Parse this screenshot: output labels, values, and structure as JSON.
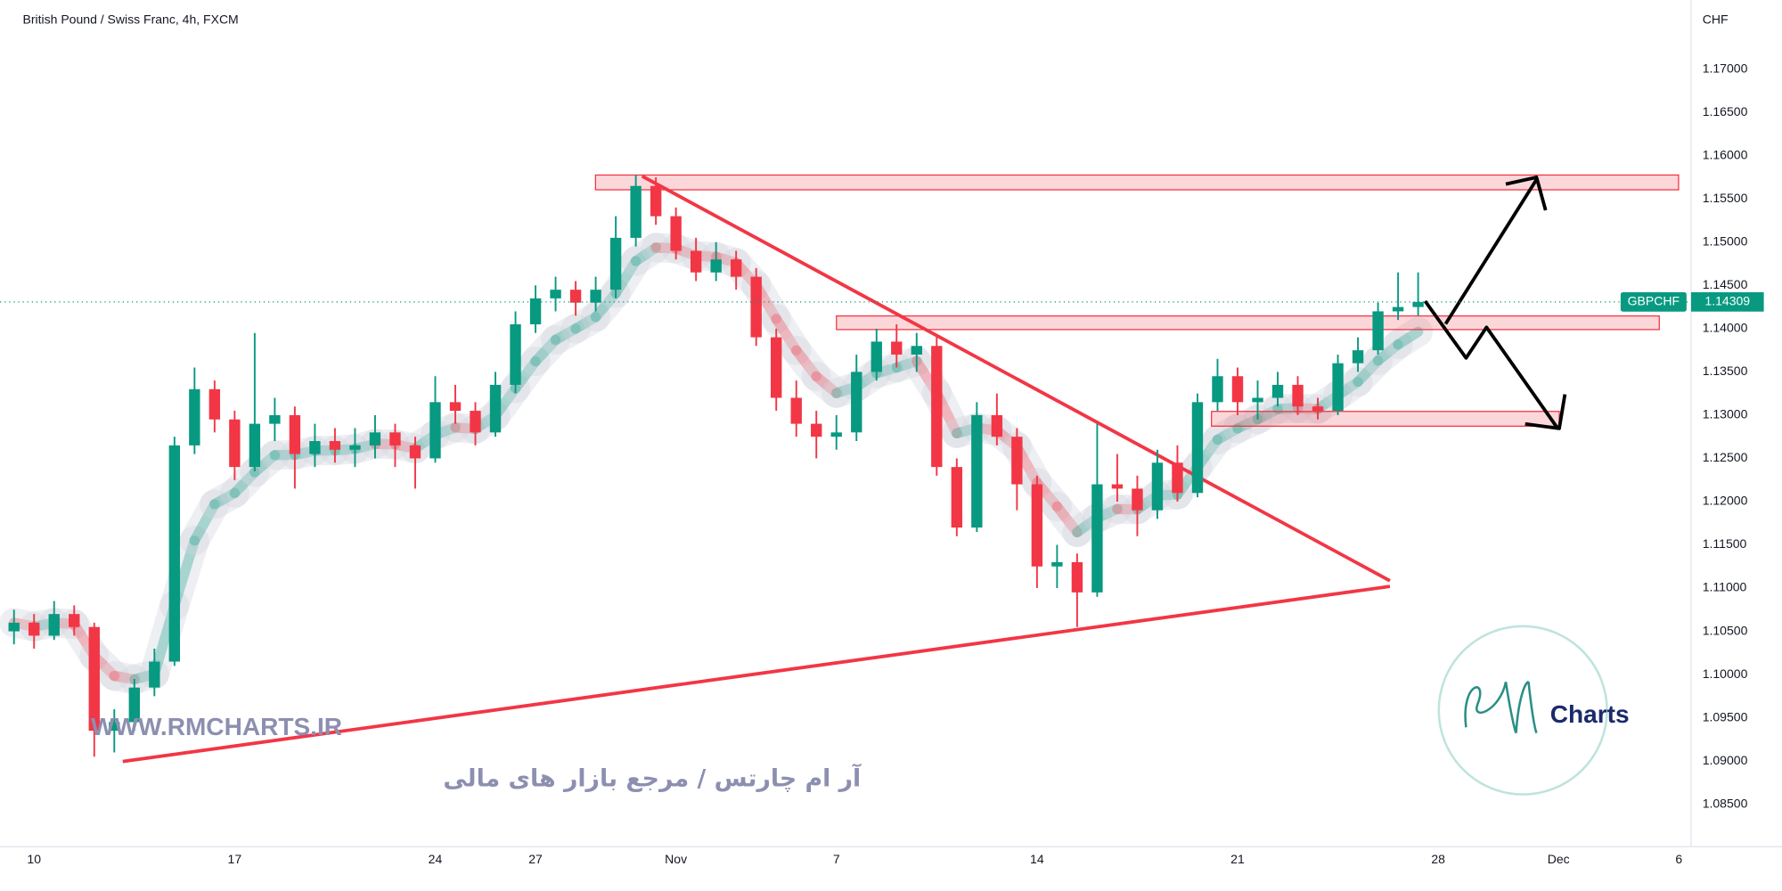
{
  "chart_data": {
    "type": "candlestick",
    "title": "British Pound / Swiss Franc, 4h, FXCM",
    "currency": "CHF",
    "last_price": {
      "symbol": "GBPCHF",
      "value": 1.14309
    },
    "up_color": "#089981",
    "down_color": "#f23645",
    "grid": false,
    "categories": [
      null,
      "10",
      null,
      null,
      null,
      null,
      null,
      null,
      null,
      null,
      null,
      "17",
      null,
      null,
      null,
      null,
      null,
      null,
      null,
      null,
      null,
      "24",
      null,
      null,
      null,
      null,
      "27",
      null,
      null,
      null,
      null,
      null,
      null,
      "Nov",
      null,
      null,
      null,
      null,
      null,
      null,
      null,
      "7",
      null,
      null,
      null,
      null,
      null,
      null,
      null,
      null,
      null,
      "14",
      null,
      null,
      null,
      null,
      null,
      null,
      null,
      null,
      null,
      "21",
      null,
      null,
      null,
      null,
      null,
      null,
      null,
      null,
      null,
      "28",
      null,
      null,
      null,
      null,
      null,
      "Dec",
      null,
      null,
      null,
      null,
      null,
      "6"
    ],
    "open": [
      1.105,
      1.106,
      1.1045,
      1.107,
      1.1055,
      1.0935,
      1.0945,
      1.0985,
      1.1015,
      1.1265,
      1.133,
      1.1295,
      1.124,
      1.129,
      1.13,
      1.1255,
      1.127,
      1.126,
      1.1265,
      1.128,
      1.1265,
      1.125,
      1.1315,
      1.1305,
      1.128,
      1.1335,
      1.1405,
      1.1435,
      1.1445,
      1.143,
      1.1445,
      1.1505,
      1.1565,
      1.153,
      1.149,
      1.1465,
      1.148,
      1.146,
      1.139,
      1.132,
      1.129,
      1.1275,
      1.128,
      1.135,
      1.1385,
      1.137,
      1.138,
      1.124,
      1.117,
      1.13,
      1.1275,
      1.122,
      1.1125,
      1.113,
      1.1095,
      1.122,
      1.1215,
      1.119,
      1.1245,
      1.121,
      1.1315,
      1.1345,
      1.1315,
      1.132,
      1.1335,
      1.131,
      1.1305,
      1.136,
      1.1375,
      1.142,
      1.1425,
      null,
      null,
      null,
      null,
      null,
      null,
      null,
      null,
      null,
      null,
      null,
      null,
      null
    ],
    "high": [
      1.1075,
      1.107,
      1.1085,
      1.108,
      1.106,
      1.096,
      1.0995,
      1.103,
      1.1275,
      1.1355,
      1.134,
      1.1305,
      1.1395,
      1.132,
      1.131,
      1.129,
      1.1285,
      1.1285,
      1.13,
      1.129,
      1.1275,
      1.1345,
      1.1335,
      1.1315,
      1.135,
      1.142,
      1.145,
      1.146,
      1.1455,
      1.146,
      1.153,
      1.1578,
      1.1575,
      1.154,
      1.1505,
      1.15,
      1.149,
      1.147,
      1.14,
      1.134,
      1.1305,
      1.13,
      1.137,
      1.14,
      1.1405,
      1.1395,
      1.139,
      1.125,
      1.1315,
      1.1325,
      1.1285,
      1.123,
      1.115,
      1.114,
      1.129,
      1.1255,
      1.123,
      1.126,
      1.1265,
      1.1325,
      1.1365,
      1.1355,
      1.134,
      1.135,
      1.1345,
      1.132,
      1.137,
      1.139,
      1.143,
      1.1465,
      1.1465,
      null,
      null,
      null,
      null,
      null,
      null,
      null,
      null,
      null,
      null,
      null,
      null,
      null
    ],
    "low": [
      1.1035,
      1.103,
      1.104,
      1.1045,
      1.0905,
      1.091,
      1.0935,
      1.0975,
      1.101,
      1.1255,
      1.128,
      1.1225,
      1.1235,
      1.127,
      1.1215,
      1.124,
      1.1245,
      1.124,
      1.125,
      1.124,
      1.1215,
      1.1245,
      1.129,
      1.1265,
      1.1275,
      1.1325,
      1.1395,
      1.142,
      1.1415,
      1.142,
      1.1435,
      1.1495,
      1.152,
      1.148,
      1.1455,
      1.1455,
      1.1445,
      1.138,
      1.1305,
      1.1275,
      1.125,
      1.126,
      1.127,
      1.134,
      1.1355,
      1.135,
      1.123,
      1.116,
      1.1165,
      1.1265,
      1.119,
      1.11,
      1.11,
      1.1055,
      1.109,
      1.12,
      1.116,
      1.118,
      1.12,
      1.1205,
      1.1305,
      1.13,
      1.1295,
      1.131,
      1.13,
      1.1295,
      1.13,
      1.135,
      1.137,
      1.141,
      1.1415,
      null,
      null,
      null,
      null,
      null,
      null,
      null,
      null,
      null,
      null,
      null,
      null,
      null
    ],
    "close": [
      1.106,
      1.1045,
      1.107,
      1.1055,
      1.0935,
      1.0945,
      1.0985,
      1.1015,
      1.1265,
      1.133,
      1.1295,
      1.124,
      1.129,
      1.13,
      1.1255,
      1.127,
      1.126,
      1.1265,
      1.128,
      1.1265,
      1.125,
      1.1315,
      1.1305,
      1.128,
      1.1335,
      1.1405,
      1.1435,
      1.1445,
      1.143,
      1.1445,
      1.1505,
      1.1565,
      1.153,
      1.149,
      1.1465,
      1.148,
      1.146,
      1.139,
      1.132,
      1.129,
      1.1275,
      1.128,
      1.135,
      1.1385,
      1.137,
      1.138,
      1.124,
      1.117,
      1.13,
      1.1275,
      1.122,
      1.1125,
      1.113,
      1.1095,
      1.122,
      1.1215,
      1.119,
      1.1245,
      1.121,
      1.1315,
      1.1345,
      1.1315,
      1.132,
      1.1335,
      1.131,
      1.1305,
      1.136,
      1.1375,
      1.142,
      1.1425,
      1.14309,
      null,
      null,
      null,
      null,
      null,
      null,
      null,
      null,
      null,
      null,
      null,
      null,
      null
    ],
    "ylim": [
      1.0801,
      1.178
    ],
    "yticks": [
      {
        "value": 1.085,
        "label": "1.08500"
      },
      {
        "value": 1.09,
        "label": "1.09000"
      },
      {
        "value": 1.095,
        "label": "1.09500"
      },
      {
        "value": 1.1,
        "label": "1.10000"
      },
      {
        "value": 1.105,
        "label": "1.10500"
      },
      {
        "value": 1.11,
        "label": "1.11000"
      },
      {
        "value": 1.115,
        "label": "1.11500"
      },
      {
        "value": 1.12,
        "label": "1.12000"
      },
      {
        "value": 1.125,
        "label": "1.12500"
      },
      {
        "value": 1.13,
        "label": "1.13000"
      },
      {
        "value": 1.135,
        "label": "1.13500"
      },
      {
        "value": 1.14,
        "label": "1.14000"
      },
      {
        "value": 1.145,
        "label": "1.14500"
      },
      {
        "value": 1.15,
        "label": "1.15000"
      },
      {
        "value": 1.155,
        "label": "1.15500"
      },
      {
        "value": 1.16,
        "label": "1.16000"
      },
      {
        "value": 1.165,
        "label": "1.16500"
      },
      {
        "value": 1.17,
        "label": "1.17000"
      }
    ]
  },
  "watermark": {
    "url": "WWW.RMCHARTS.IR",
    "tagline": "آر ام چارتس / مرجع بازار های مالی",
    "logo": "Charts"
  }
}
